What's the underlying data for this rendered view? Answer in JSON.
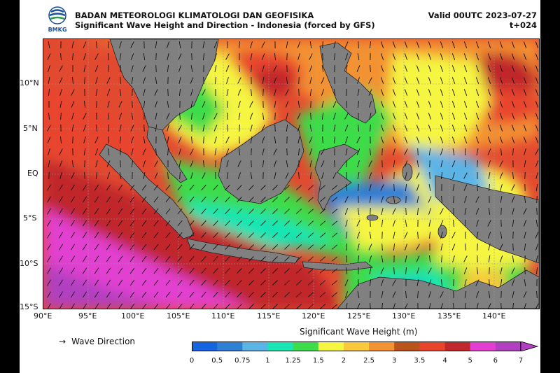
{
  "header": {
    "agency": "BADAN METEOROLOGI KLIMATOLOGI DAN GEOFISIKA",
    "subtitle": "Significant Wave Height and Direction - Indonesia (forced by GFS)",
    "valid": "Valid 00UTC 2023-07-27",
    "lead": "t+024",
    "logo_text": "BMKG"
  },
  "axes": {
    "lat_ticks": [
      "10°N",
      "5°N",
      "EQ",
      "5°S",
      "10°S",
      "15°S"
    ],
    "lon_ticks": [
      "90°E",
      "95°E",
      "100°E",
      "105°E",
      "110°E",
      "115°E",
      "120°E",
      "125°E",
      "130°E",
      "135°E",
      "140°E"
    ]
  },
  "legend": {
    "arrow_glyph": "→",
    "wave_direction": "Wave Direction",
    "colorbar_title": "Significant Wave Height (m)",
    "levels": [
      "0",
      "0.5",
      "0.75",
      "1",
      "1.25",
      "1.5",
      "2",
      "2.5",
      "3",
      "3.5",
      "4",
      "5",
      "6",
      "7"
    ],
    "colors": [
      "#1565e0",
      "#2f7fd4",
      "#5ab4e6",
      "#19e6b4",
      "#3ddc4a",
      "#f5f542",
      "#f7c93b",
      "#f39233",
      "#b9541a",
      "#e8452f",
      "#c0282b",
      "#e23fd0",
      "#b040c0"
    ]
  },
  "land_color": "#808080"
}
